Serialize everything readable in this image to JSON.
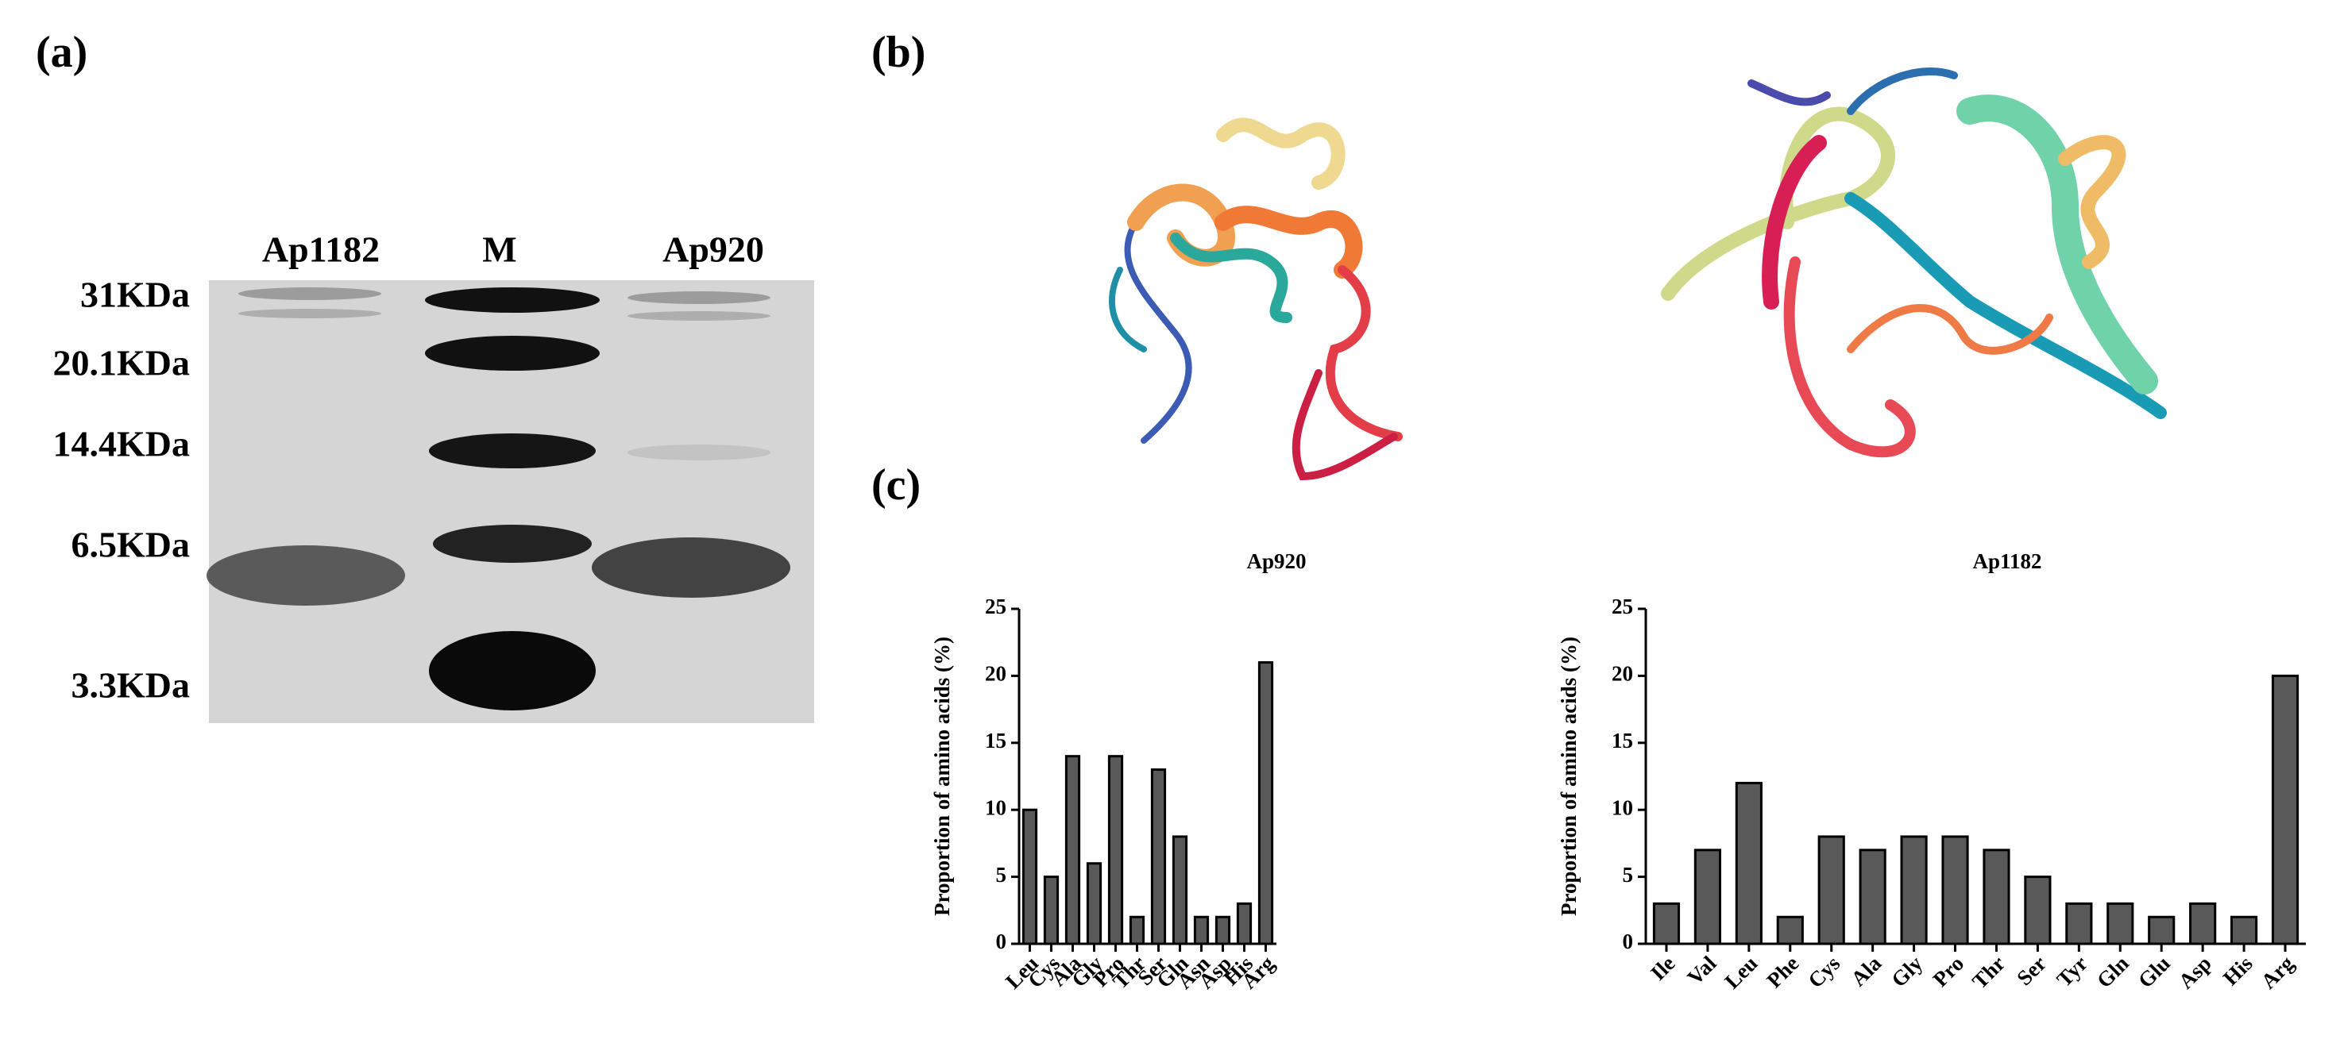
{
  "panel_labels": [
    "(a)",
    "(b)",
    "(c)"
  ],
  "gel": {
    "lanes": [
      "Ap1182",
      "M",
      "Ap920"
    ],
    "markers": [
      "31KDa",
      "20.1KDa",
      "14.4KDa",
      "6.5KDa",
      "3.3KDa"
    ]
  },
  "chart_data": [
    {
      "type": "bar",
      "title": "Ap920",
      "y_label": "Proportion of amino acids (%)",
      "categories": [
        "Leu",
        "Cys",
        "Ala",
        "Gly",
        "Pro",
        "Thr",
        "Ser",
        "Gln",
        "Asn",
        "Asp",
        "His",
        "Arg"
      ],
      "values": [
        10,
        5,
        14,
        6,
        14,
        2,
        13,
        8,
        2,
        2,
        3,
        21
      ],
      "color": "#595959",
      "ylim": [
        0,
        25
      ],
      "yticks": [
        0,
        5,
        10,
        15,
        20,
        25
      ]
    },
    {
      "type": "bar",
      "title": "Ap1182",
      "y_label": "Proportion of amino acids (%)",
      "categories": [
        "Ile",
        "Val",
        "Leu",
        "Phe",
        "Cys",
        "Ala",
        "Gly",
        "Pro",
        "Thr",
        "Ser",
        "Tyr",
        "Gln",
        "Glu",
        "Asp",
        "His",
        "Arg"
      ],
      "values": [
        3,
        7,
        12,
        2,
        8,
        7,
        8,
        8,
        7,
        5,
        3,
        3,
        2,
        3,
        2,
        20
      ],
      "color": "#595959",
      "ylim": [
        0,
        25
      ],
      "yticks": [
        0,
        5,
        10,
        15,
        20,
        25
      ]
    }
  ]
}
